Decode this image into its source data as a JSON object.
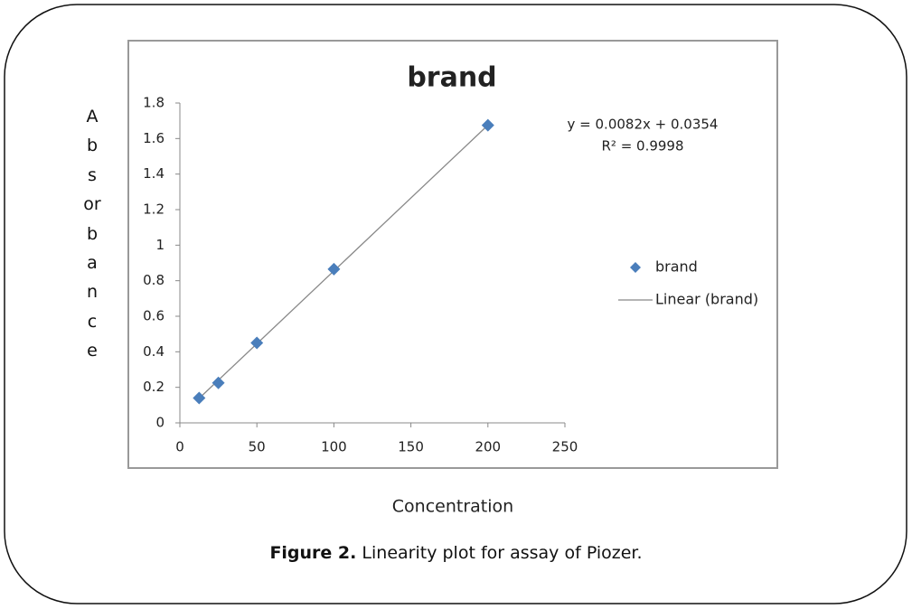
{
  "chart_data": {
    "type": "scatter",
    "title": "brand",
    "x_label": "Concentration",
    "y_label": "Absorbance",
    "series": [
      {
        "name": "brand",
        "color": "#4a7ebb",
        "x": [
          12.5,
          25,
          50,
          100,
          200
        ],
        "values": [
          0.14,
          0.225,
          0.45,
          0.865,
          1.675
        ]
      }
    ],
    "trendline": {
      "name": "Linear (brand)",
      "color": "#888888",
      "equation": "y = 0.0082x + 0.0354",
      "slope": 0.0082,
      "intercept": 0.0354,
      "r_squared": "R² = 0.9998"
    },
    "xlim": [
      0,
      250
    ],
    "xticks": [
      0,
      50,
      100,
      150,
      200,
      250
    ],
    "ylim": [
      0,
      1.8
    ],
    "yticks": [
      0,
      0.2,
      0.4,
      0.6,
      0.8,
      1,
      1.2,
      1.4,
      1.6,
      1.8
    ],
    "grid": false,
    "legend": "right"
  },
  "caption": {
    "label": "Figure 2.",
    "text": "Linearity plot for assay of Piozer."
  }
}
